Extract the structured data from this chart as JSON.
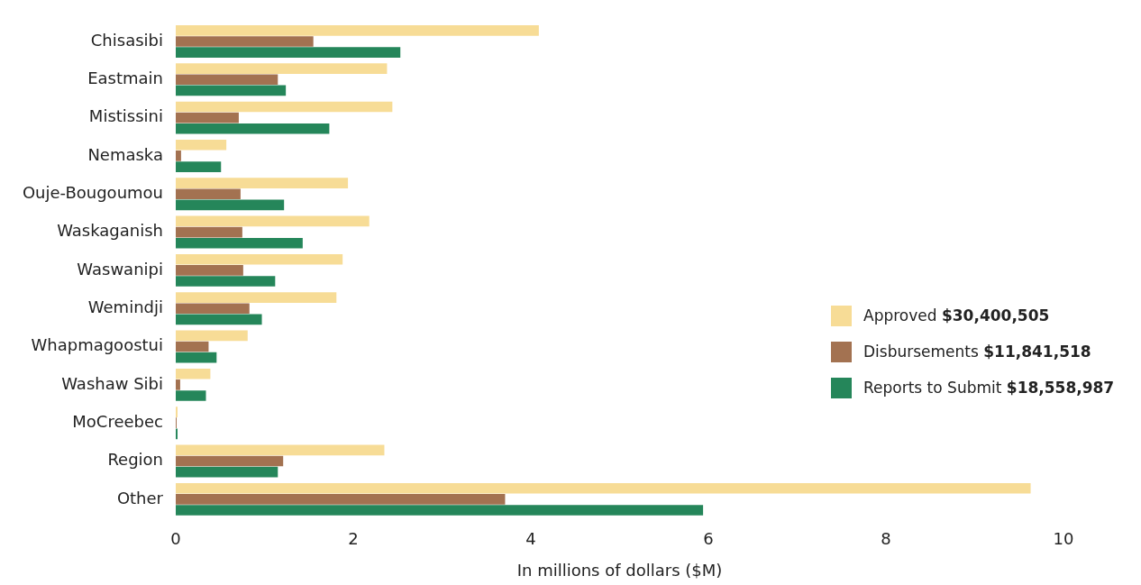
{
  "chart_data": {
    "type": "bar",
    "orientation": "horizontal",
    "xlabel": "In millions of dollars ($M)",
    "categories": [
      "Chisasibi",
      "Eastmain",
      "Mistissini",
      "Nemaska",
      "Ouje-Bougoumou",
      "Waskaganish",
      "Waswanipi",
      "Wemindji",
      "Whapmagoostui",
      "Washaw Sibi",
      "MoCreebec",
      "Region",
      "Other"
    ],
    "series": [
      {
        "name": "Approved $30,400,505",
        "color": "#f7dc96",
        "values": [
          4.09,
          2.38,
          2.44,
          0.57,
          1.94,
          2.18,
          1.88,
          1.81,
          0.81,
          0.39,
          0.02,
          2.35,
          9.63
        ]
      },
      {
        "name": "Disbursements $11,841,518",
        "color": "#a37251",
        "values": [
          1.55,
          1.15,
          0.71,
          0.06,
          0.73,
          0.75,
          0.76,
          0.83,
          0.37,
          0.05,
          0.01,
          1.21,
          3.71
        ]
      },
      {
        "name": "Reports to Submit $18,558,987",
        "color": "#25865a",
        "values": [
          2.53,
          1.24,
          1.73,
          0.51,
          1.22,
          1.43,
          1.12,
          0.97,
          0.46,
          0.34,
          0.02,
          1.15,
          5.94
        ]
      }
    ],
    "xlim": [
      0,
      10
    ],
    "xticks": [
      0,
      2,
      4,
      6,
      8,
      10
    ],
    "grid": false,
    "legend": "right"
  }
}
